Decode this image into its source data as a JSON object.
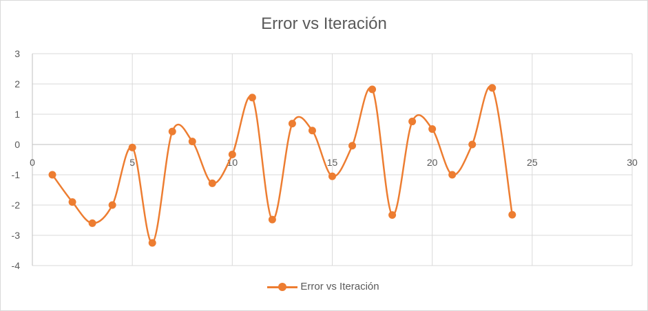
{
  "chart_data": {
    "type": "scatter",
    "title": "Error vs Iteración",
    "xlabel": "",
    "ylabel": "",
    "xlim": [
      0,
      30
    ],
    "ylim": [
      -4,
      3
    ],
    "x_ticks": [
      0,
      5,
      10,
      15,
      20,
      25,
      30
    ],
    "y_ticks": [
      3,
      2,
      1,
      0,
      -1,
      -2,
      -3,
      -4
    ],
    "grid": true,
    "legend_position": "bottom",
    "series": [
      {
        "name": "Error vs Iteración",
        "color": "#ED7D31",
        "line": "smooth",
        "marker": "circle",
        "x": [
          1,
          2,
          3,
          4,
          5,
          6,
          7,
          8,
          9,
          10,
          11,
          12,
          13,
          14,
          15,
          16,
          17,
          18,
          19,
          20,
          21,
          22,
          23,
          24
        ],
        "y": [
          -1.0,
          -1.9,
          -2.6,
          -2.0,
          -0.1,
          -3.25,
          0.43,
          0.1,
          -1.28,
          -0.33,
          1.55,
          -2.48,
          0.69,
          0.46,
          -1.05,
          -0.04,
          1.82,
          -2.33,
          0.76,
          0.51,
          -1.0,
          0.0,
          1.87,
          -2.32
        ]
      }
    ]
  }
}
